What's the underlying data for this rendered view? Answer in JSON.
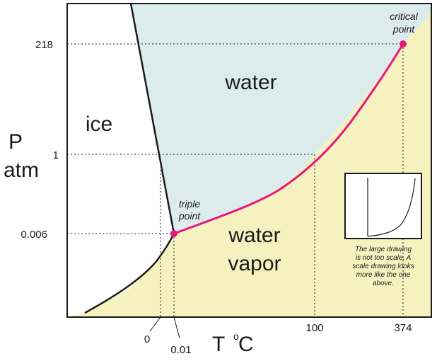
{
  "diagram": {
    "axes": {
      "y_title": "P",
      "y_unit": "atm",
      "x_title_prefix": "T ",
      "x_unit_degree": "o",
      "x_unit_letter": "C",
      "y_ticks": [
        "218",
        "1",
        "0.006"
      ],
      "x_ticks": [
        "0",
        "0.01",
        "100",
        "374"
      ]
    },
    "regions": {
      "ice": "ice",
      "water": "water",
      "vapor_line1": "water",
      "vapor_line2": "vapor"
    },
    "points": {
      "triple_line1": "triple",
      "triple_line2": "point",
      "critical_line1": "critical",
      "critical_line2": "point"
    },
    "inset_note": {
      "line1": "The large drawing",
      "line2": "is not too scale.  A",
      "line3": "scale drawing looks",
      "line4": "more like the one",
      "line5": "above."
    },
    "colors": {
      "water_region": "#dcecec",
      "vapor_region": "#f5f2c0",
      "boundary_curve": "#e8167e",
      "phase_lines": "#1a1a1a"
    }
  }
}
